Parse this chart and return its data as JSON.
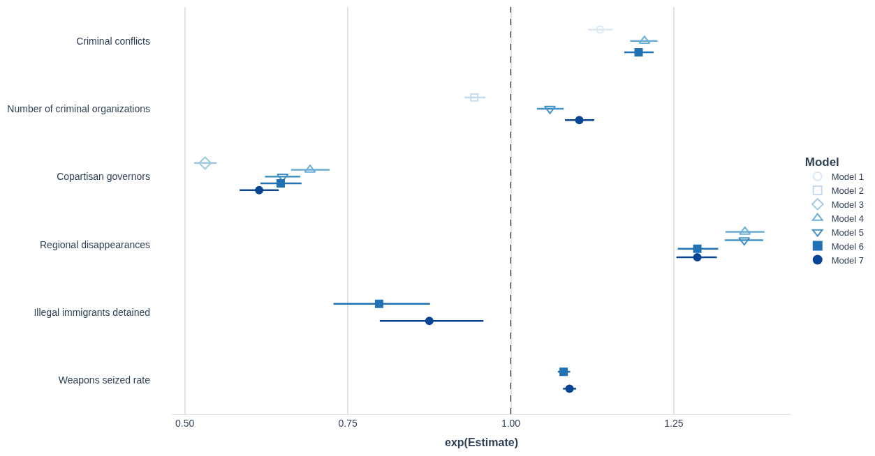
{
  "chart_data": {
    "type": "scatter",
    "orientation": "horizontal",
    "xlabel": "exp(Estimate)",
    "legend_title": "Model",
    "legend": "right",
    "grid": "x",
    "categories": [
      "Criminal conflicts",
      "Number of criminal organizations",
      "Copartisan governors",
      "Regional disappearances",
      "Illegal immigrants detained",
      "Weapons seized rate"
    ],
    "xlim": [
      0.48,
      1.43
    ],
    "xticks": [
      {
        "value": 0.5,
        "label": "0.50"
      },
      {
        "value": 0.75,
        "label": "0.75"
      },
      {
        "value": 1.0,
        "label": "1.00"
      },
      {
        "value": 1.25,
        "label": "1.25"
      }
    ],
    "ref_lines": [
      {
        "axis": "x",
        "value": 1.0,
        "color": "#000000",
        "line_style": "dashed"
      }
    ],
    "series": [
      {
        "name": "Model 1",
        "color": "#dbe9f6",
        "marker": "circle-open",
        "values": [
          1.137,
          null,
          null,
          null,
          null,
          null
        ],
        "errors": [
          [
            1.118,
            1.156
          ],
          null,
          null,
          null,
          null,
          null
        ]
      },
      {
        "name": "Model 2",
        "color": "#c6dbef",
        "marker": "square-open",
        "values": [
          null,
          0.944,
          null,
          null,
          null,
          null
        ],
        "errors": [
          null,
          [
            0.929,
            0.961
          ],
          null,
          null,
          null,
          null
        ]
      },
      {
        "name": "Model 3",
        "color": "#9ecae1",
        "marker": "diamond-open",
        "values": [
          null,
          null,
          0.531,
          null,
          null,
          null
        ],
        "errors": [
          null,
          null,
          [
            0.514,
            0.549
          ],
          null,
          null,
          null
        ]
      },
      {
        "name": "Model 4",
        "color": "#6baed6",
        "marker": "triangle-open",
        "values": [
          1.205,
          null,
          0.692,
          1.359,
          null,
          null
        ],
        "errors": [
          [
            1.183,
            1.225
          ],
          null,
          [
            0.663,
            0.722
          ],
          [
            1.329,
            1.389
          ],
          null,
          null
        ]
      },
      {
        "name": "Model 5",
        "color": "#4292c6",
        "marker": "triangle-down-open",
        "values": [
          null,
          1.06,
          0.65,
          1.358,
          null,
          null
        ],
        "errors": [
          null,
          [
            1.04,
            1.081
          ],
          [
            0.623,
            0.677
          ],
          [
            1.328,
            1.387
          ],
          null,
          null
        ]
      },
      {
        "name": "Model 6",
        "color": "#2171b5",
        "marker": "square",
        "values": [
          1.196,
          null,
          0.647,
          1.286,
          0.798,
          1.081
        ],
        "errors": [
          [
            1.174,
            1.219
          ],
          null,
          [
            0.616,
            0.679
          ],
          [
            1.256,
            1.318
          ],
          [
            0.728,
            0.876
          ],
          [
            1.072,
            1.091
          ]
        ]
      },
      {
        "name": "Model 7",
        "color": "#084594",
        "marker": "circle",
        "values": [
          null,
          1.105,
          0.614,
          1.286,
          0.875,
          1.09
        ],
        "errors": [
          null,
          [
            1.083,
            1.128
          ],
          [
            0.584,
            0.644
          ],
          [
            1.254,
            1.316
          ],
          [
            0.799,
            0.958
          ],
          [
            1.08,
            1.1
          ]
        ]
      }
    ]
  }
}
